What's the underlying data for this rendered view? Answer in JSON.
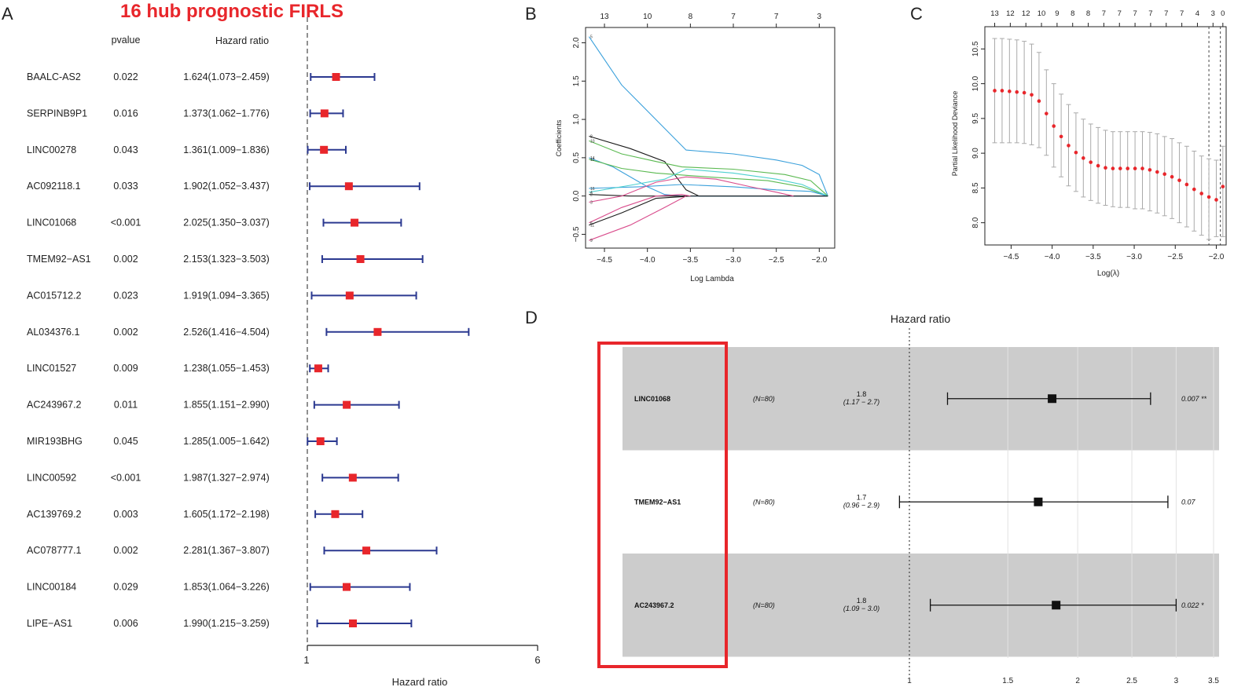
{
  "panel_letters": {
    "a": "A",
    "b": "B",
    "c": "C",
    "d": "D"
  },
  "colors": {
    "title_red": "#e8262b",
    "marker_red": "#e8262b",
    "navy": "#2b3990",
    "gray_band": "#cccccc",
    "box_red": "#e8262b",
    "cv_err": "#aaaaaa"
  },
  "chart_data": [
    {
      "type": "forest",
      "panel": "A",
      "title": "16 hub prognostic FIRLS",
      "column_headers": {
        "pvalue": "pvalue",
        "hr": "Hazard ratio"
      },
      "xlabel": "Hazard ratio",
      "xlim": [
        1,
        6
      ],
      "xticks": [
        "1",
        "6"
      ],
      "rows": [
        {
          "gene": "BAALC-AS2",
          "pvalue": "0.022",
          "hr_text": "1.624(1.073−2.459)",
          "hr": 1.624,
          "lo": 1.073,
          "hi": 2.459
        },
        {
          "gene": "SERPINB9P1",
          "pvalue": "0.016",
          "hr_text": "1.373(1.062−1.776)",
          "hr": 1.373,
          "lo": 1.062,
          "hi": 1.776
        },
        {
          "gene": "LINC00278",
          "pvalue": "0.043",
          "hr_text": "1.361(1.009−1.836)",
          "hr": 1.361,
          "lo": 1.009,
          "hi": 1.836
        },
        {
          "gene": "AC092118.1",
          "pvalue": "0.033",
          "hr_text": "1.902(1.052−3.437)",
          "hr": 1.902,
          "lo": 1.052,
          "hi": 3.437
        },
        {
          "gene": "LINC01068",
          "pvalue": "<0.001",
          "hr_text": "2.025(1.350−3.037)",
          "hr": 2.025,
          "lo": 1.35,
          "hi": 3.037
        },
        {
          "gene": "TMEM92−AS1",
          "pvalue": "0.002",
          "hr_text": "2.153(1.323−3.503)",
          "hr": 2.153,
          "lo": 1.323,
          "hi": 3.503
        },
        {
          "gene": "AC015712.2",
          "pvalue": "0.023",
          "hr_text": "1.919(1.094−3.365)",
          "hr": 1.919,
          "lo": 1.094,
          "hi": 3.365
        },
        {
          "gene": "AL034376.1",
          "pvalue": "0.002",
          "hr_text": "2.526(1.416−4.504)",
          "hr": 2.526,
          "lo": 1.416,
          "hi": 4.504
        },
        {
          "gene": "LINC01527",
          "pvalue": "0.009",
          "hr_text": "1.238(1.055−1.453)",
          "hr": 1.238,
          "lo": 1.055,
          "hi": 1.453
        },
        {
          "gene": "AC243967.2",
          "pvalue": "0.011",
          "hr_text": "1.855(1.151−2.990)",
          "hr": 1.855,
          "lo": 1.151,
          "hi": 2.99
        },
        {
          "gene": "MIR193BHG",
          "pvalue": "0.045",
          "hr_text": "1.285(1.005−1.642)",
          "hr": 1.285,
          "lo": 1.005,
          "hi": 1.642
        },
        {
          "gene": "LINC00592",
          "pvalue": "<0.001",
          "hr_text": "1.987(1.327−2.974)",
          "hr": 1.987,
          "lo": 1.327,
          "hi": 2.974
        },
        {
          "gene": "AC139769.2",
          "pvalue": "0.003",
          "hr_text": "1.605(1.172−2.198)",
          "hr": 1.605,
          "lo": 1.172,
          "hi": 2.198
        },
        {
          "gene": "AC078777.1",
          "pvalue": "0.002",
          "hr_text": "2.281(1.367−3.807)",
          "hr": 2.281,
          "lo": 1.367,
          "hi": 3.807
        },
        {
          "gene": "LINC00184",
          "pvalue": "0.029",
          "hr_text": "1.853(1.064−3.226)",
          "hr": 1.853,
          "lo": 1.064,
          "hi": 3.226
        },
        {
          "gene": "LIPE−AS1",
          "pvalue": "0.006",
          "hr_text": "1.990(1.215−3.259)",
          "hr": 1.99,
          "lo": 1.215,
          "hi": 3.259
        }
      ]
    },
    {
      "type": "line",
      "panel": "B",
      "title": "",
      "xlabel": "Log Lambda",
      "ylabel": "Coefficients",
      "xlim": [
        -4.72,
        -1.82
      ],
      "ylim": [
        -0.68,
        2.2
      ],
      "xticks": [
        -4.5,
        -4.0,
        -3.5,
        -3.0,
        -2.5,
        -2.0
      ],
      "xtick_labels": [
        "−4.5",
        "−4.0",
        "−3.5",
        "−3.0",
        "−2.5",
        "−2.0"
      ],
      "yticks": [
        -0.5,
        0.0,
        0.5,
        1.0,
        1.5,
        2.0
      ],
      "ytick_labels": [
        "−0.5",
        "0.0",
        "0.5",
        "1.0",
        "1.5",
        "2.0"
      ],
      "top_axis": {
        "positions": [
          -4.5,
          -4.0,
          -3.5,
          -3.0,
          -2.5,
          -2.0
        ],
        "labels": [
          "13",
          "10",
          "8",
          "7",
          "7",
          "3"
        ]
      },
      "series": [
        {
          "name": "5",
          "color": "#3aa0db",
          "x": [
            -4.68,
            -4.3,
            -3.55,
            -3.0,
            -2.5,
            -2.2,
            -2.0,
            -1.9
          ],
          "y": [
            2.08,
            1.45,
            0.6,
            0.55,
            0.47,
            0.4,
            0.28,
            0.0
          ]
        },
        {
          "name": "8",
          "color": "#1a1a1a",
          "x": [
            -4.68,
            -4.2,
            -3.8,
            -3.55,
            -3.4,
            -1.9
          ],
          "y": [
            0.78,
            0.62,
            0.45,
            0.08,
            0.0,
            0.0
          ]
        },
        {
          "name": "10",
          "color": "#5ab950",
          "x": [
            -4.68,
            -4.3,
            -3.9,
            -3.6,
            -3.0,
            -2.4,
            -2.1,
            -1.9
          ],
          "y": [
            0.72,
            0.55,
            0.45,
            0.38,
            0.35,
            0.28,
            0.2,
            0.0
          ]
        },
        {
          "name": "14",
          "color": "#3aa0db",
          "x": [
            -4.68,
            -4.4,
            -4.0,
            -3.8,
            -3.6,
            -1.9
          ],
          "y": [
            0.5,
            0.38,
            0.12,
            0.02,
            0.0,
            0.0
          ]
        },
        {
          "name": "12",
          "color": "#5ab950",
          "x": [
            -4.68,
            -4.3,
            -3.9,
            -3.3,
            -2.6,
            -2.2,
            -1.9
          ],
          "y": [
            0.48,
            0.36,
            0.3,
            0.25,
            0.2,
            0.12,
            0.0
          ]
        },
        {
          "name": "16",
          "color": "#3aa0db",
          "x": [
            -4.68,
            -4.1,
            -3.6,
            -3.0,
            -2.5,
            -2.1,
            -1.9
          ],
          "y": [
            0.1,
            0.12,
            0.15,
            0.12,
            0.08,
            0.06,
            0.0
          ]
        },
        {
          "name": "4",
          "color": "#4dd0d0",
          "x": [
            -4.68,
            -4.2,
            -3.8,
            -3.55,
            -3.0,
            -2.5,
            -2.2,
            -1.9
          ],
          "y": [
            0.05,
            0.14,
            0.22,
            0.35,
            0.3,
            0.22,
            0.15,
            0.0
          ]
        },
        {
          "name": "2",
          "color": "#1a1a1a",
          "x": [
            -4.68,
            -4.2,
            -3.8,
            -3.55,
            -1.9
          ],
          "y": [
            0.02,
            0.0,
            0.0,
            0.0,
            0.0
          ]
        },
        {
          "name": "3",
          "color": "#d94c8c",
          "x": [
            -4.68,
            -4.3,
            -3.9,
            -3.55,
            -3.2,
            -2.8,
            -2.5,
            -2.3
          ],
          "y": [
            -0.08,
            0.0,
            0.18,
            0.25,
            0.22,
            0.12,
            0.05,
            0.0
          ]
        },
        {
          "name": "11",
          "color": "#1a1a1a",
          "x": [
            -4.68,
            -4.3,
            -3.9,
            -3.6,
            -3.5
          ],
          "y": [
            -0.38,
            -0.22,
            -0.03,
            -0.01,
            0.0
          ]
        },
        {
          "name": "6",
          "color": "#d94c8c",
          "x": [
            -4.68,
            -4.3,
            -3.9,
            -3.6,
            -3.5
          ],
          "y": [
            -0.35,
            -0.15,
            0.0,
            0.02,
            0.0
          ]
        },
        {
          "name": "9",
          "color": "#d94c8c",
          "x": [
            -4.68,
            -4.2,
            -3.8,
            -3.55
          ],
          "y": [
            -0.58,
            -0.38,
            -0.15,
            0.0
          ]
        }
      ]
    },
    {
      "type": "scatter",
      "panel": "C",
      "title": "",
      "xlabel": "Log(λ)",
      "ylabel": "Partial Likelihood Deviance",
      "xlim": [
        -4.82,
        -1.88
      ],
      "ylim": [
        7.68,
        10.82
      ],
      "xticks": [
        -4.5,
        -4.0,
        -3.5,
        -3.0,
        -2.5,
        -2.0
      ],
      "xtick_labels": [
        "−4.5",
        "−4.0",
        "−3.5",
        "−3.0",
        "−2.5",
        "−2.0"
      ],
      "yticks": [
        8.0,
        8.5,
        9.0,
        9.5,
        10.0,
        10.5
      ],
      "ytick_labels": [
        "8.0",
        "8.5",
        "9.0",
        "9.5",
        "10.0",
        "10.5"
      ],
      "top_labels": [
        "13",
        "12",
        "12",
        "10",
        "9",
        "8",
        "8",
        "7",
        "7",
        "7",
        "7",
        "7",
        "7",
        "4",
        "3",
        "0"
      ],
      "top_label_x": [
        -4.7,
        -4.51,
        -4.32,
        -4.13,
        -3.94,
        -3.75,
        -3.56,
        -3.37,
        -3.18,
        -2.99,
        -2.8,
        -2.61,
        -2.42,
        -2.23,
        -2.04,
        -1.92
      ],
      "vlines": [
        -2.09,
        -1.95
      ],
      "x": [
        -4.7,
        -4.61,
        -4.52,
        -4.43,
        -4.34,
        -4.25,
        -4.16,
        -4.07,
        -3.98,
        -3.89,
        -3.8,
        -3.71,
        -3.62,
        -3.53,
        -3.44,
        -3.35,
        -3.26,
        -3.17,
        -3.08,
        -2.99,
        -2.9,
        -2.81,
        -2.72,
        -2.63,
        -2.54,
        -2.45,
        -2.36,
        -2.27,
        -2.18,
        -2.09,
        -2.0,
        -1.92
      ],
      "y": [
        9.9,
        9.9,
        9.89,
        9.88,
        9.87,
        9.84,
        9.75,
        9.57,
        9.39,
        9.24,
        9.11,
        9.01,
        8.93,
        8.87,
        8.82,
        8.79,
        8.78,
        8.78,
        8.78,
        8.78,
        8.78,
        8.76,
        8.73,
        8.7,
        8.66,
        8.61,
        8.55,
        8.48,
        8.42,
        8.37,
        8.33,
        8.52
      ],
      "err_lo": [
        9.15,
        9.15,
        9.15,
        9.15,
        9.14,
        9.12,
        9.08,
        8.97,
        8.8,
        8.66,
        8.53,
        8.45,
        8.37,
        8.32,
        8.28,
        8.25,
        8.23,
        8.22,
        8.22,
        8.2,
        8.2,
        8.17,
        8.14,
        8.1,
        8.06,
        8.0,
        7.94,
        7.88,
        7.82,
        7.76,
        7.8,
        7.8
      ],
      "err_hi": [
        10.65,
        10.65,
        10.64,
        10.63,
        10.61,
        10.57,
        10.45,
        10.2,
        10.0,
        9.85,
        9.7,
        9.58,
        9.49,
        9.42,
        9.37,
        9.33,
        9.31,
        9.31,
        9.31,
        9.31,
        9.31,
        9.3,
        9.28,
        9.24,
        9.21,
        9.15,
        9.1,
        9.03,
        8.96,
        8.92,
        8.9,
        9.1
      ]
    },
    {
      "type": "forest",
      "panel": "D",
      "title": "Hazard ratio",
      "x_scale": "log",
      "xlim_ticks": [
        1,
        1.5,
        2,
        2.5,
        3,
        3.5
      ],
      "xtick_labels": [
        "1",
        "1.5",
        "2",
        "2.5",
        "3",
        "3.5"
      ],
      "rows": [
        {
          "gene": "LINC01068",
          "n": "(N=80)",
          "hr_label": "1.8",
          "ci_label": "(1.17 − 2.7)",
          "hr": 1.8,
          "lo": 1.17,
          "hi": 2.7,
          "p": "0.007 **",
          "shaded": true
        },
        {
          "gene": "TMEM92−AS1",
          "n": "(N=80)",
          "hr_label": "1.7",
          "ci_label": "(0.96 − 2.9)",
          "hr": 1.7,
          "lo": 0.96,
          "hi": 2.9,
          "p": "0.07",
          "shaded": false
        },
        {
          "gene": "AC243967.2",
          "n": "(N=80)",
          "hr_label": "1.8",
          "ci_label": "(1.09 − 3.0)",
          "hr": 1.83,
          "lo": 1.09,
          "hi": 3.0,
          "p": "0.022 *",
          "shaded": true
        }
      ]
    }
  ]
}
